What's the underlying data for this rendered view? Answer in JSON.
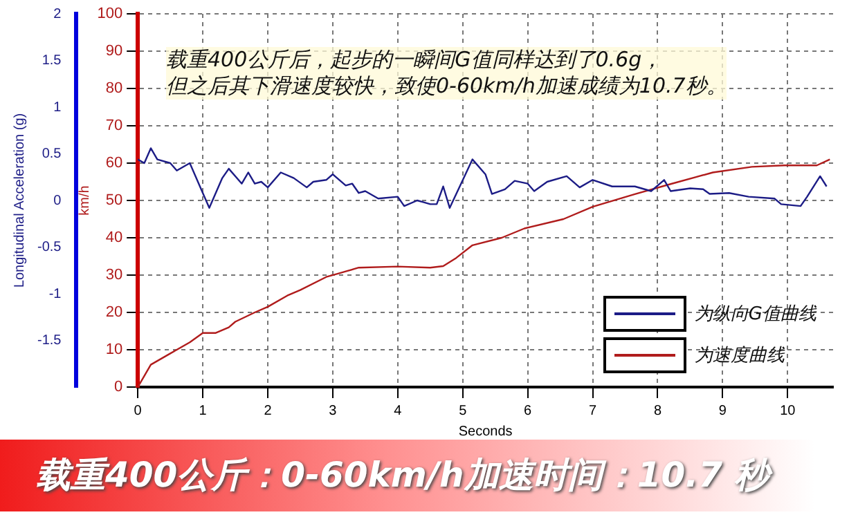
{
  "chart_data": {
    "type": "line",
    "title": "载重400公斤：0-60km/h加速时间：10.7 秒",
    "xlabel": "Seconds",
    "ylabel": "Longitudinal Acceleration (g)",
    "y2label": "km/h",
    "annotations": [
      "载重400公斤后，起步的一瞬间G值同样达到了0.6g，",
      "但之后其下滑速度较快，致使0-60km/h加速成绩为10.7秒。"
    ],
    "xlim": [
      0,
      10.7
    ],
    "xticks": [
      0,
      1,
      2,
      3,
      4,
      5,
      6,
      7,
      8,
      9,
      10
    ],
    "ylim": [
      -2,
      2
    ],
    "yticks": [
      -1.5,
      -1,
      -0.5,
      0,
      0.5,
      1,
      1.5,
      2
    ],
    "y2lim": [
      0,
      100
    ],
    "y2ticks": [
      0,
      10,
      20,
      30,
      40,
      50,
      60,
      70,
      80,
      90,
      100
    ],
    "grid": true,
    "legend": "bottom right",
    "marker": "none",
    "line_style": "solid",
    "series": [
      {
        "name": "为纵向G值曲线",
        "color": "#1c1c86",
        "x": [
          0,
          0.1,
          0.2,
          0.3,
          0.5,
          0.6,
          0.8,
          1.0,
          1.1,
          1.3,
          1.4,
          1.6,
          1.7,
          1.8,
          1.9,
          2.0,
          2.2,
          2.4,
          2.6,
          2.7,
          2.9,
          3.0,
          3.2,
          3.3,
          3.4,
          3.5,
          3.7,
          4.0,
          4.1,
          4.3,
          4.4,
          4.5,
          4.6,
          4.7,
          4.8,
          5.15,
          5.35,
          5.45,
          5.65,
          5.8,
          6.0,
          6.1,
          6.3,
          6.6,
          6.8,
          7.0,
          7.3,
          7.65,
          7.9,
          8.1,
          8.2,
          8.5,
          8.7,
          8.8,
          9.1,
          9.4,
          9.8,
          9.9,
          10.2,
          10.3,
          10.5,
          10.6
        ],
        "values": [
          0.44,
          0.4,
          0.56,
          0.44,
          0.4,
          0.32,
          0.4,
          0.08,
          -0.08,
          0.24,
          0.34,
          0.18,
          0.3,
          0.18,
          0.2,
          0.14,
          0.3,
          0.24,
          0.14,
          0.2,
          0.22,
          0.28,
          0.16,
          0.18,
          0.08,
          0.1,
          0.02,
          0.04,
          -0.06,
          0,
          -0.02,
          -0.04,
          -0.04,
          0.15,
          -0.08,
          0.44,
          0.28,
          0.07,
          0.12,
          0.21,
          0.18,
          0.1,
          0.2,
          0.26,
          0.14,
          0.22,
          0.15,
          0.15,
          0.1,
          0.22,
          0.1,
          0.13,
          0.12,
          0.07,
          0.08,
          0.04,
          0.02,
          -0.04,
          -0.06,
          0.04,
          0.26,
          0.15
        ]
      },
      {
        "name": "为速度曲线",
        "color": "#b01c1c",
        "axis": "y2",
        "x": [
          0,
          0.1,
          0.2,
          0.5,
          0.8,
          1.0,
          1.2,
          1.4,
          1.5,
          1.8,
          2.0,
          2.3,
          2.5,
          2.9,
          3.1,
          3.2,
          3.4,
          4.0,
          4.5,
          4.7,
          4.9,
          5.15,
          5.6,
          5.95,
          6.55,
          7.0,
          7.65,
          8.2,
          8.85,
          9.45,
          9.95,
          10.45,
          10.65
        ],
        "values": [
          0,
          3,
          6,
          9,
          12,
          14.5,
          14.5,
          16,
          17.5,
          20,
          21.5,
          24.5,
          26,
          29.5,
          30.5,
          31,
          32,
          32.3,
          32,
          32.4,
          34.6,
          38,
          40,
          42.5,
          45,
          48.3,
          51.7,
          54.4,
          57.5,
          59,
          59.4,
          59.4,
          61
        ]
      }
    ]
  }
}
